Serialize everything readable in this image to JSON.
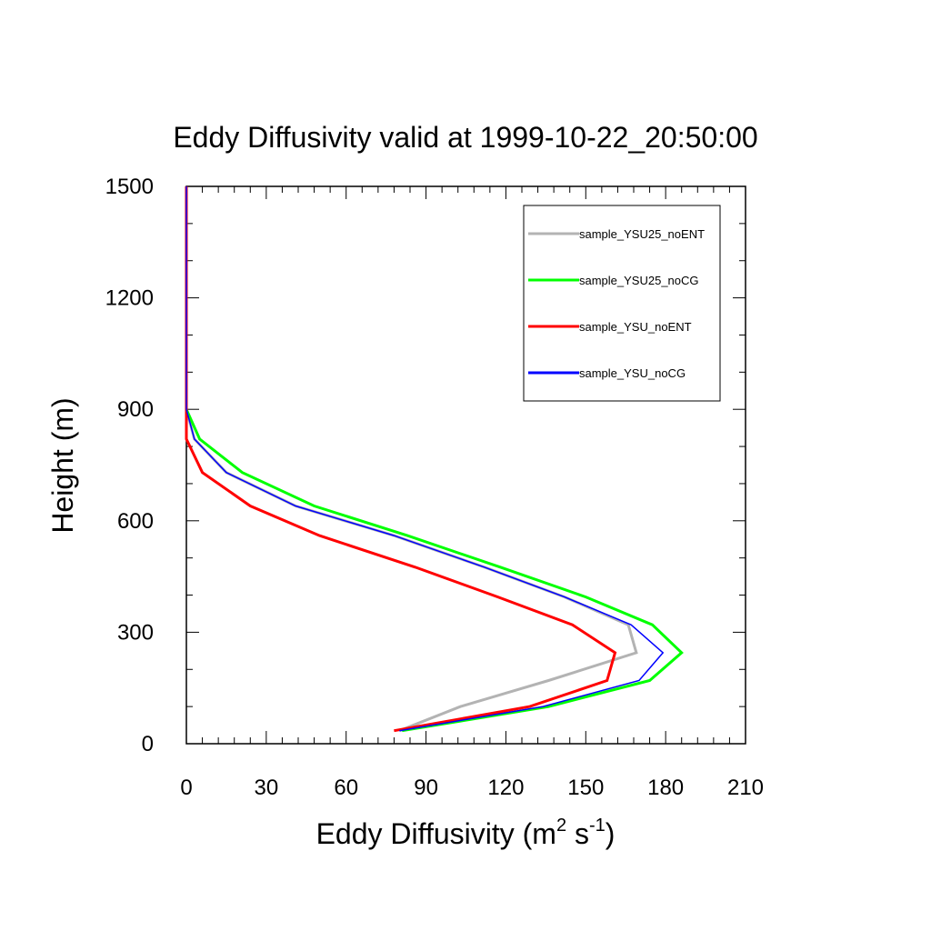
{
  "chart_data": {
    "type": "line",
    "title": "Eddy Diffusivity valid at 1999-10-22_20:50:00",
    "xlabel": {
      "base": "Eddy Diffusivity (m",
      "sup1": "2",
      "mid": " s",
      "sup2": "-1",
      "end": ")"
    },
    "ylabel": "Height (m)",
    "xlim": [
      0,
      210
    ],
    "ylim": [
      0,
      1500
    ],
    "xticks": [
      0,
      30,
      60,
      90,
      120,
      150,
      180,
      210
    ],
    "yticks": [
      0,
      300,
      600,
      900,
      1200,
      1500
    ],
    "xtick_labels": [
      "0",
      "30",
      "60",
      "90",
      "120",
      "150",
      "180",
      "210"
    ],
    "ytick_labels": [
      "0",
      "300",
      "600",
      "900",
      "1200",
      "1500"
    ],
    "legend_position": "top-right",
    "grid": false,
    "series": [
      {
        "name": "sample_YSU25_noENT",
        "color": "#b3b3b3",
        "points": [
          [
            80,
            35
          ],
          [
            103,
            100
          ],
          [
            136,
            170
          ],
          [
            169,
            245
          ],
          [
            166,
            320
          ],
          [
            142,
            395
          ],
          [
            112,
            475
          ],
          [
            78,
            560
          ],
          [
            41,
            640
          ],
          [
            15,
            730
          ],
          [
            3,
            820
          ],
          [
            0,
            900
          ],
          [
            0,
            1000
          ],
          [
            0,
            1100
          ],
          [
            0,
            1200
          ],
          [
            0,
            1300
          ],
          [
            0,
            1400
          ],
          [
            0,
            1500
          ]
        ]
      },
      {
        "name": "sample_YSU25_noCG",
        "color": "#00ff00",
        "points": [
          [
            81,
            35
          ],
          [
            136,
            100
          ],
          [
            174,
            170
          ],
          [
            186,
            245
          ],
          [
            175,
            320
          ],
          [
            150,
            395
          ],
          [
            118,
            475
          ],
          [
            83,
            560
          ],
          [
            48,
            640
          ],
          [
            21,
            730
          ],
          [
            5,
            820
          ],
          [
            0,
            900
          ],
          [
            0,
            1000
          ],
          [
            0,
            1100
          ],
          [
            0,
            1200
          ],
          [
            0,
            1300
          ],
          [
            0,
            1400
          ],
          [
            0,
            1500
          ]
        ]
      },
      {
        "name": "sample_YSU_noENT",
        "color": "#ff0000",
        "points": [
          [
            78,
            35
          ],
          [
            129,
            100
          ],
          [
            158,
            170
          ],
          [
            161,
            245
          ],
          [
            145,
            320
          ],
          [
            117,
            395
          ],
          [
            86,
            475
          ],
          [
            50,
            560
          ],
          [
            24,
            640
          ],
          [
            6,
            730
          ],
          [
            0,
            820
          ],
          [
            0,
            900
          ],
          [
            0,
            1000
          ],
          [
            0,
            1100
          ],
          [
            0,
            1200
          ],
          [
            0,
            1300
          ],
          [
            0,
            1400
          ],
          [
            0,
            1500
          ]
        ]
      },
      {
        "name": "sample_YSU_noCG",
        "color": "#0000ff",
        "points": [
          [
            80,
            35
          ],
          [
            134,
            100
          ],
          [
            170,
            170
          ],
          [
            179,
            245
          ],
          [
            167,
            320
          ],
          [
            142,
            395
          ],
          [
            112,
            475
          ],
          [
            78,
            560
          ],
          [
            41,
            640
          ],
          [
            15,
            730
          ],
          [
            3,
            820
          ],
          [
            0,
            900
          ],
          [
            0,
            1000
          ],
          [
            0,
            1100
          ],
          [
            0,
            1200
          ],
          [
            0,
            1300
          ],
          [
            0,
            1400
          ],
          [
            0,
            1500
          ]
        ]
      }
    ]
  }
}
